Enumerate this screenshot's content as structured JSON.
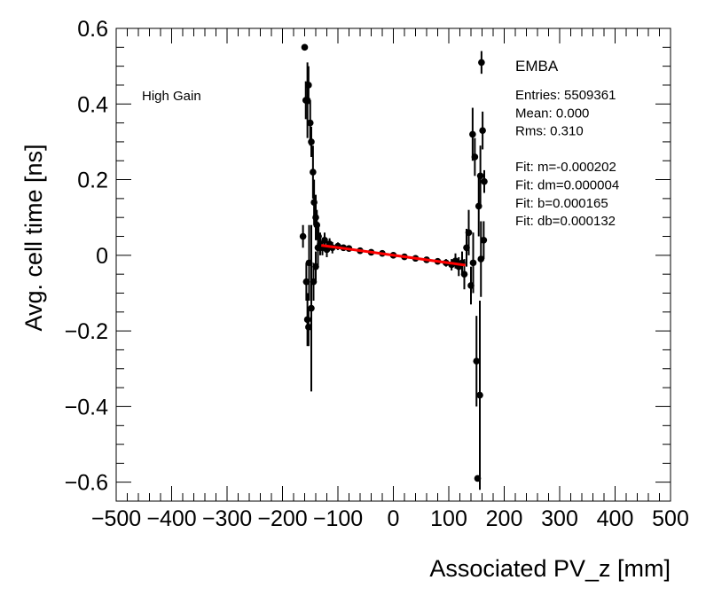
{
  "chart_data": {
    "type": "scatter",
    "title": "",
    "xlabel": "Associated PV_z [mm]",
    "ylabel": "Avg. cell time [ns]",
    "xlim": [
      -500,
      500
    ],
    "ylim": [
      -0.65,
      0.6
    ],
    "x_ticks": [
      -500,
      -400,
      -300,
      -200,
      -100,
      0,
      100,
      200,
      300,
      400,
      500
    ],
    "x_tick_labels": [
      "−500",
      "−400",
      "−300",
      "−200",
      "−100",
      "0",
      "100",
      "200",
      "300",
      "400",
      "500"
    ],
    "y_ticks": [
      0.6,
      0.4,
      0.2,
      0,
      -0.2,
      -0.4,
      -0.6
    ],
    "y_tick_labels": [
      "0.6",
      "0.4",
      "0.2",
      "0",
      "−0.2",
      "−0.4",
      "−0.6"
    ],
    "grid": false,
    "annotation": "High Gain",
    "stats_box": {
      "title": "EMBA",
      "lines": [
        "Entries: 5509361",
        "Mean: 0.000",
        "Rms: 0.310",
        "",
        "Fit: m=-0.000202",
        "Fit: dm=0.000004",
        "Fit: b=0.000165",
        "Fit: db=0.000132"
      ]
    },
    "series": [
      {
        "kind": "points_with_errors",
        "color": "#000000",
        "points": [
          {
            "x": -160,
            "y": 0.55,
            "err": 0
          },
          {
            "x": -158,
            "y": 0.41,
            "err": 0.05
          },
          {
            "x": -155,
            "y": 0.41,
            "err": 0.1
          },
          {
            "x": -153,
            "y": 0.45,
            "err": 0.05
          },
          {
            "x": -150,
            "y": 0.35,
            "err": 0.06
          },
          {
            "x": -148,
            "y": 0.3,
            "err": 0.04
          },
          {
            "x": -145,
            "y": 0.22,
            "err": 0.07
          },
          {
            "x": -143,
            "y": 0.14,
            "err": 0.06
          },
          {
            "x": -140,
            "y": 0.1,
            "err": 0.06
          },
          {
            "x": -138,
            "y": 0.08,
            "err": 0.04
          },
          {
            "x": -135,
            "y": 0.05,
            "err": 0.03
          },
          {
            "x": -163,
            "y": 0.05,
            "err": 0.03
          },
          {
            "x": -157,
            "y": -0.07,
            "err": 0.05
          },
          {
            "x": -152,
            "y": -0.02,
            "err": 0.1
          },
          {
            "x": -155,
            "y": -0.17,
            "err": 0.07
          },
          {
            "x": -153,
            "y": -0.19,
            "err": 0.05
          },
          {
            "x": -148,
            "y": -0.14,
            "err": 0.22
          },
          {
            "x": -144,
            "y": -0.07,
            "err": 0.05
          },
          {
            "x": -140,
            "y": -0.03,
            "err": 0.04
          },
          {
            "x": -136,
            "y": 0.02,
            "err": 0.05
          },
          {
            "x": -132,
            "y": 0.03,
            "err": 0.03
          },
          {
            "x": -128,
            "y": 0.02,
            "err": 0.02
          },
          {
            "x": -124,
            "y": 0.04,
            "err": 0.02
          },
          {
            "x": -120,
            "y": 0.015,
            "err": 0.02
          },
          {
            "x": -115,
            "y": 0.03,
            "err": 0.015
          },
          {
            "x": -110,
            "y": 0.02,
            "err": 0.015
          },
          {
            "x": -100,
            "y": 0.024,
            "err": 0.01
          },
          {
            "x": -90,
            "y": 0.02,
            "err": 0.008
          },
          {
            "x": -80,
            "y": 0.018,
            "err": 0.006
          },
          {
            "x": -60,
            "y": 0.012,
            "err": 0.005
          },
          {
            "x": -40,
            "y": 0.008,
            "err": 0.004
          },
          {
            "x": -20,
            "y": 0.005,
            "err": 0.004
          },
          {
            "x": 0,
            "y": 0.0,
            "err": 0.004
          },
          {
            "x": 20,
            "y": -0.004,
            "err": 0.004
          },
          {
            "x": 40,
            "y": -0.008,
            "err": 0.004
          },
          {
            "x": 60,
            "y": -0.012,
            "err": 0.005
          },
          {
            "x": 80,
            "y": -0.016,
            "err": 0.006
          },
          {
            "x": 95,
            "y": -0.02,
            "err": 0.01
          },
          {
            "x": 105,
            "y": -0.025,
            "err": 0.015
          },
          {
            "x": 112,
            "y": -0.015,
            "err": 0.02
          },
          {
            "x": 118,
            "y": -0.03,
            "err": 0.025
          },
          {
            "x": 124,
            "y": -0.02,
            "err": 0.03
          },
          {
            "x": 128,
            "y": -0.05,
            "err": 0.04
          },
          {
            "x": 132,
            "y": 0.02,
            "err": 0.05
          },
          {
            "x": 136,
            "y": 0.06,
            "err": 0.06
          },
          {
            "x": 140,
            "y": -0.08,
            "err": 0.05
          },
          {
            "x": 144,
            "y": -0.02,
            "err": 0.08
          },
          {
            "x": 143,
            "y": 0.32,
            "err": 0.07
          },
          {
            "x": 147,
            "y": 0.26,
            "err": 0.05
          },
          {
            "x": 150,
            "y": -0.28,
            "err": 0.12
          },
          {
            "x": 152,
            "y": -0.59,
            "err": 0
          },
          {
            "x": 154,
            "y": 0.13,
            "err": 0.08
          },
          {
            "x": 156,
            "y": -0.37,
            "err": 0.25
          },
          {
            "x": 157,
            "y": 0.21,
            "err": 0.08
          },
          {
            "x": 158,
            "y": -0.01,
            "err": 0.1
          },
          {
            "x": 159,
            "y": 0.51,
            "err": 0.03
          },
          {
            "x": 161,
            "y": 0.33,
            "err": 0.05
          },
          {
            "x": 163,
            "y": 0.04,
            "err": 0.05
          },
          {
            "x": 164,
            "y": 0.195,
            "err": 0.03
          }
        ]
      },
      {
        "kind": "fit_line",
        "color": "#ff0000",
        "x": [
          -130,
          130
        ],
        "y": [
          0.0264,
          -0.0261
        ]
      }
    ]
  }
}
